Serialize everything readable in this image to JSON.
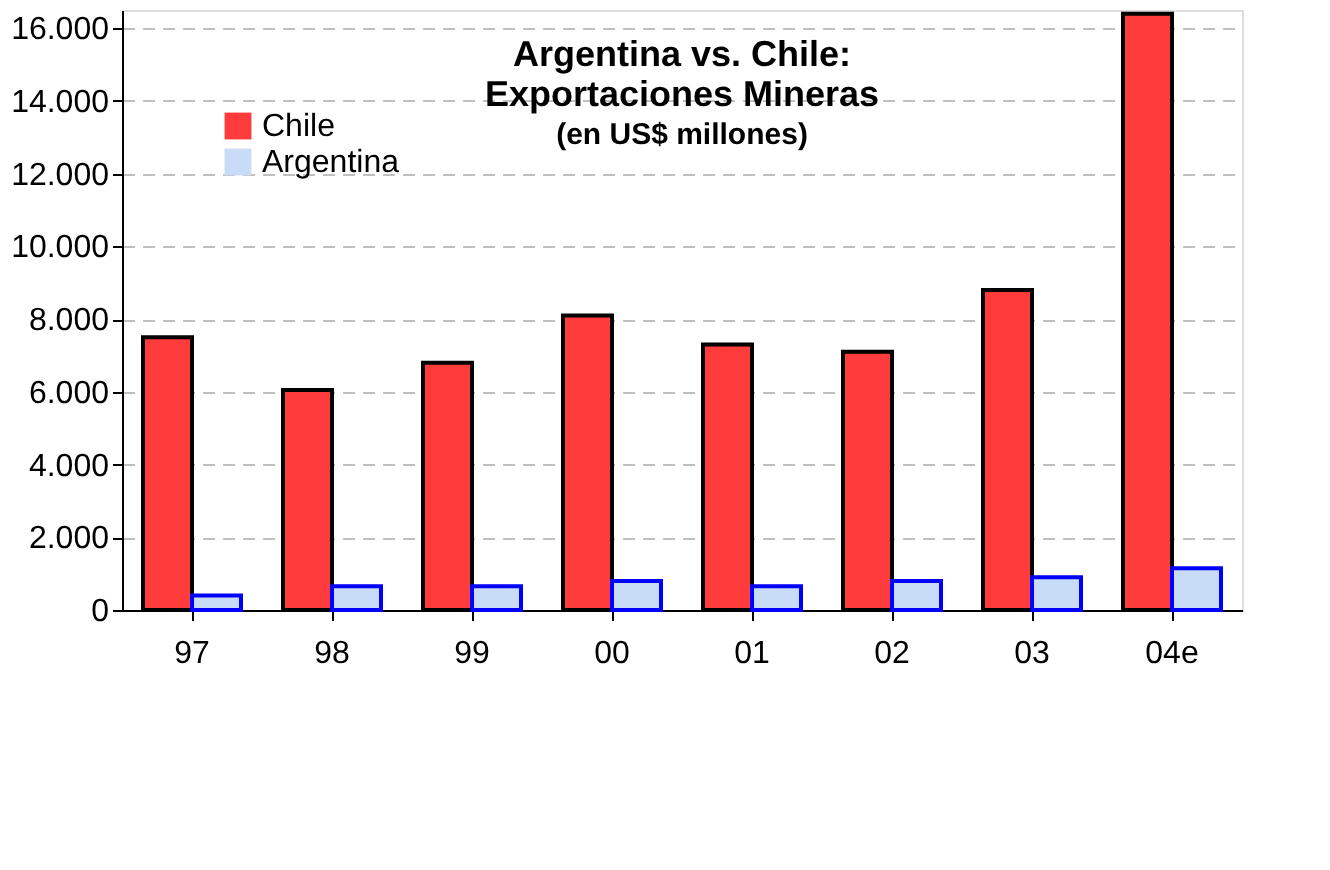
{
  "chart_data": {
    "type": "bar",
    "title": "Argentina vs. Chile: Exportaciones Mineras",
    "subtitle": "(en US$ millones)",
    "categories": [
      "97",
      "98",
      "99",
      "00",
      "01",
      "02",
      "03",
      "04e"
    ],
    "series": [
      {
        "name": "Chile",
        "color": "#ff3b3b",
        "values": [
          7500,
          6050,
          6800,
          8100,
          7300,
          7100,
          8800,
          16400
        ]
      },
      {
        "name": "Argentina",
        "color": "#c8dcf8",
        "values": [
          400,
          650,
          650,
          800,
          650,
          800,
          900,
          1150
        ]
      }
    ],
    "ylim": [
      0,
      16500
    ],
    "yticks": [
      {
        "value": 0,
        "label": "0"
      },
      {
        "value": 2000,
        "label": "2.000"
      },
      {
        "value": 4000,
        "label": "4.000"
      },
      {
        "value": 6000,
        "label": "6.000"
      },
      {
        "value": 8000,
        "label": "8.000"
      },
      {
        "value": 10000,
        "label": "10.000"
      },
      {
        "value": 12000,
        "label": "12.000"
      },
      {
        "value": 14000,
        "label": "14.000"
      },
      {
        "value": 16000,
        "label": "16.000"
      }
    ],
    "grid": "y",
    "legend": "top left"
  }
}
